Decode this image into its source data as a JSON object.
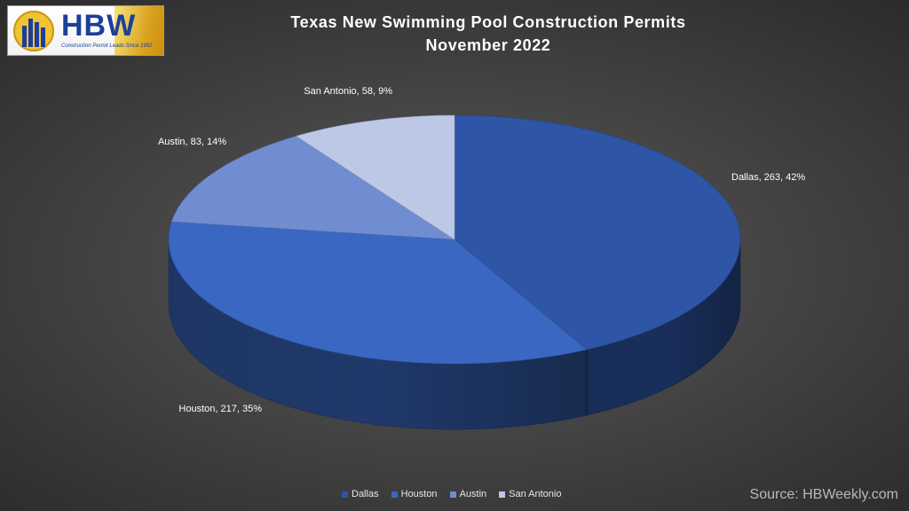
{
  "logo": {
    "letters": "HBW",
    "tagline": "Construction Permit Leads Since 1992"
  },
  "source_text": "Source: HBWeekly.com",
  "chart_data": {
    "type": "pie",
    "title": "Texas New Swimming Pool Construction Permits",
    "subtitle": "November 2022",
    "categories": [
      "Dallas",
      "Houston",
      "Austin",
      "San Antonio"
    ],
    "values": [
      263,
      217,
      83,
      58
    ],
    "percentages": [
      42,
      35,
      14,
      9
    ],
    "data_labels": [
      "Dallas, 263, 42%",
      "Houston, 217, 35%",
      "Austin, 83, 14%",
      "San Antonio, 58, 9%"
    ],
    "colors": [
      "#2e55a6",
      "#3a67c1",
      "#6f8dd0",
      "#bdc8e6"
    ],
    "legend_position": "bottom",
    "style": "3d"
  }
}
